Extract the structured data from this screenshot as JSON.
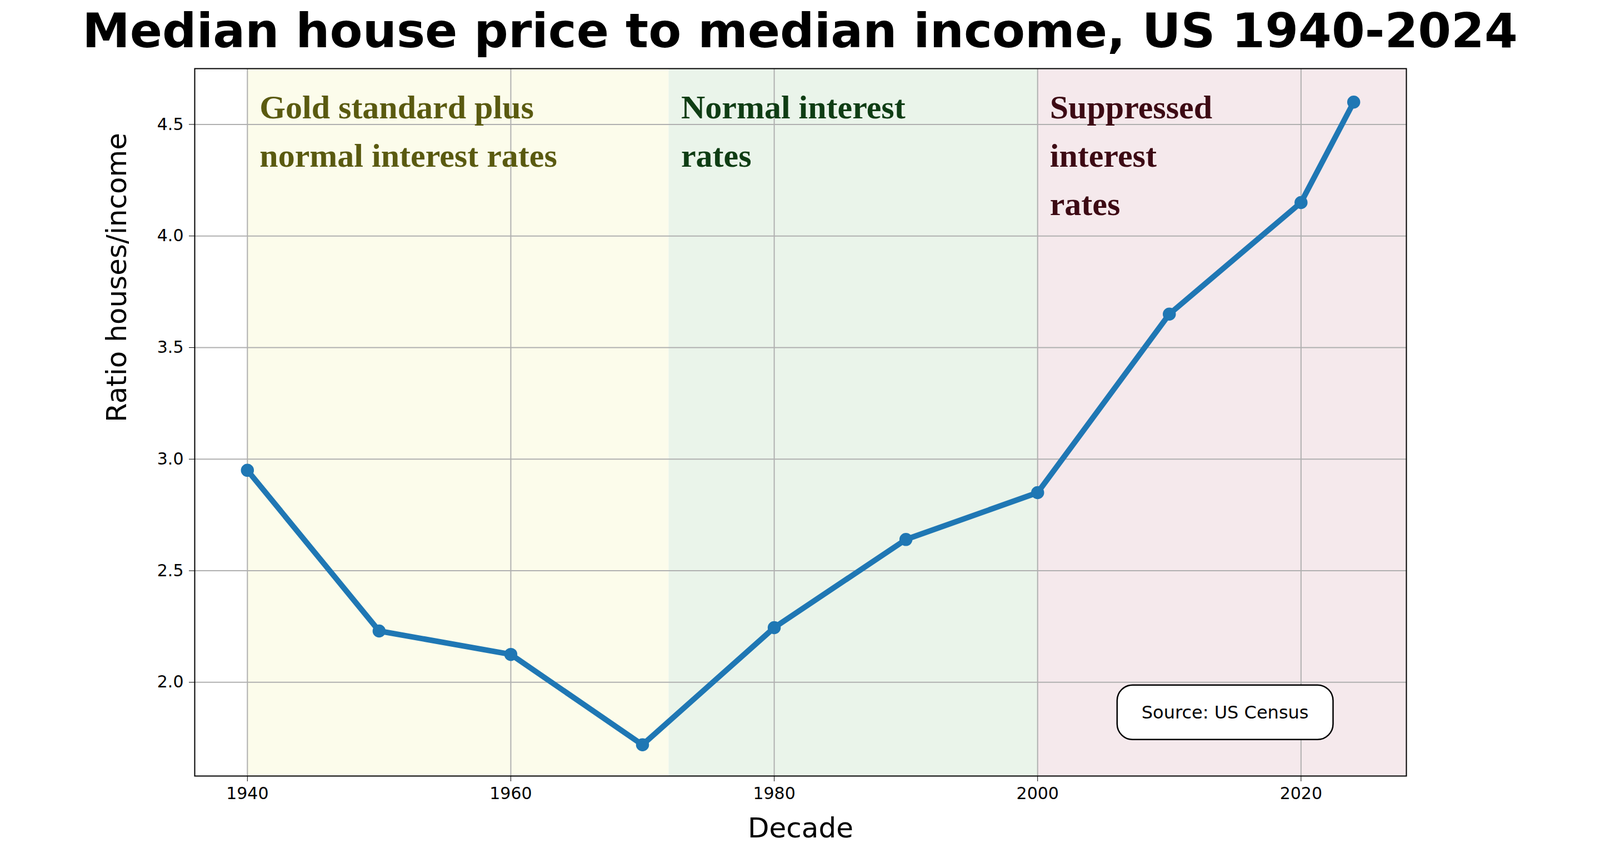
{
  "chart_data": {
    "type": "line",
    "title": "Median house price to median income, US 1940-2024",
    "x_label": "Decade",
    "y_label": "Ratio houses/income",
    "x": [
      1940,
      1950,
      1960,
      1970,
      1980,
      1990,
      2000,
      2010,
      2020,
      2024
    ],
    "values": [
      2.95,
      2.23,
      2.125,
      1.72,
      2.245,
      2.64,
      2.85,
      3.65,
      4.15,
      4.6
    ],
    "color": "#1f77b4",
    "marker": "circle",
    "line_style": "solid",
    "xlim": [
      1936,
      2028
    ],
    "xticks": [
      1940,
      1960,
      1980,
      2000,
      2020
    ],
    "ylim": [
      1.58,
      4.75
    ],
    "yticks": [
      {
        "value": 2.0,
        "label": "2.0"
      },
      {
        "value": 2.5,
        "label": "2.5"
      },
      {
        "value": 3.0,
        "label": "3.0"
      },
      {
        "value": 3.5,
        "label": "3.5"
      },
      {
        "value": 4.0,
        "label": "4.0"
      },
      {
        "value": 4.5,
        "label": "4.5"
      }
    ],
    "grid": true,
    "regions": [
      {
        "label": "Gold standard plus\nnormal interest rates",
        "start": 1940,
        "end": 1972,
        "color": "#fcfceb",
        "text_color": "#5a5a10"
      },
      {
        "label": "Normal interest\nrates",
        "start": 1972,
        "end": 2000,
        "color": "#eaf4ea",
        "text_color": "#0f3d14"
      },
      {
        "label": "Suppressed\ninterest\nrates",
        "start": 2000,
        "end": 2028,
        "color": "#f5e9ec",
        "text_color": "#3d0a14"
      }
    ],
    "note": "Source: US Census"
  }
}
